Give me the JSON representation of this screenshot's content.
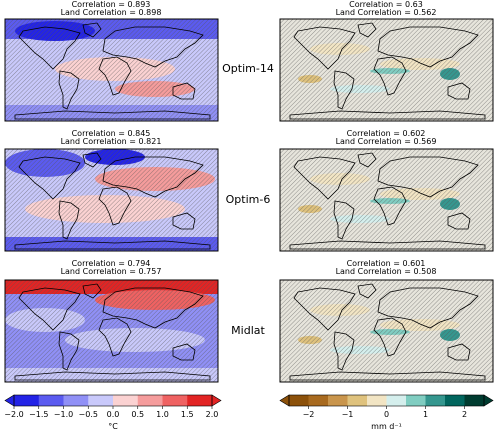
{
  "rows": [
    {
      "label": "Optim-14",
      "temperature": {
        "correlation": "Correlation = 0.893",
        "land_correlation": "Land Correlation = 0.898"
      },
      "precipitation": {
        "correlation": "Correlation = 0.63",
        "land_correlation": "Land Correlation = 0.562"
      }
    },
    {
      "label": "Optim-6",
      "temperature": {
        "correlation": "Correlation = 0.845",
        "land_correlation": "Land Correlation = 0.821"
      },
      "precipitation": {
        "correlation": "Correlation = 0.602",
        "land_correlation": "Land Correlation = 0.569"
      }
    },
    {
      "label": "Midlat",
      "temperature": {
        "correlation": "Correlation = 0.794",
        "land_correlation": "Land Correlation = 0.757"
      },
      "precipitation": {
        "correlation": "Correlation = 0.601",
        "land_correlation": "Land Correlation = 0.508"
      }
    }
  ],
  "colorbars": [
    {
      "label": "°C",
      "lim": [
        -2,
        2
      ],
      "extend": true,
      "colors": [
        "#2323e6",
        "#5b5bf0",
        "#9090f6",
        "#c9c9fb",
        "#fbd2d2",
        "#f59c9c",
        "#ef6262",
        "#e22424"
      ],
      "ticks": [
        {
          "value": -2,
          "label": "−2.0"
        },
        {
          "value": -1.5,
          "label": "−1.5"
        },
        {
          "value": -1,
          "label": "−1.0"
        },
        {
          "value": -0.5,
          "label": "−0.5"
        },
        {
          "value": 0,
          "label": "0.0"
        },
        {
          "value": 0.5,
          "label": "0.5"
        },
        {
          "value": 1,
          "label": "1.0"
        },
        {
          "value": 1.5,
          "label": "1.5"
        },
        {
          "value": 2,
          "label": "2.0"
        }
      ]
    },
    {
      "label": "mm d⁻¹",
      "lim": [
        -2.5,
        2.5
      ],
      "extend": true,
      "colors": [
        "#8c510a",
        "#a86a1f",
        "#c9954c",
        "#dfc27d",
        "#f2e5c4",
        "#d5efed",
        "#80cdc1",
        "#35978f",
        "#01665e",
        "#003c30"
      ],
      "ticks": [
        {
          "value": -2,
          "label": "−2"
        },
        {
          "value": -1,
          "label": "−1"
        },
        0,
        1,
        2
      ]
    }
  ]
}
